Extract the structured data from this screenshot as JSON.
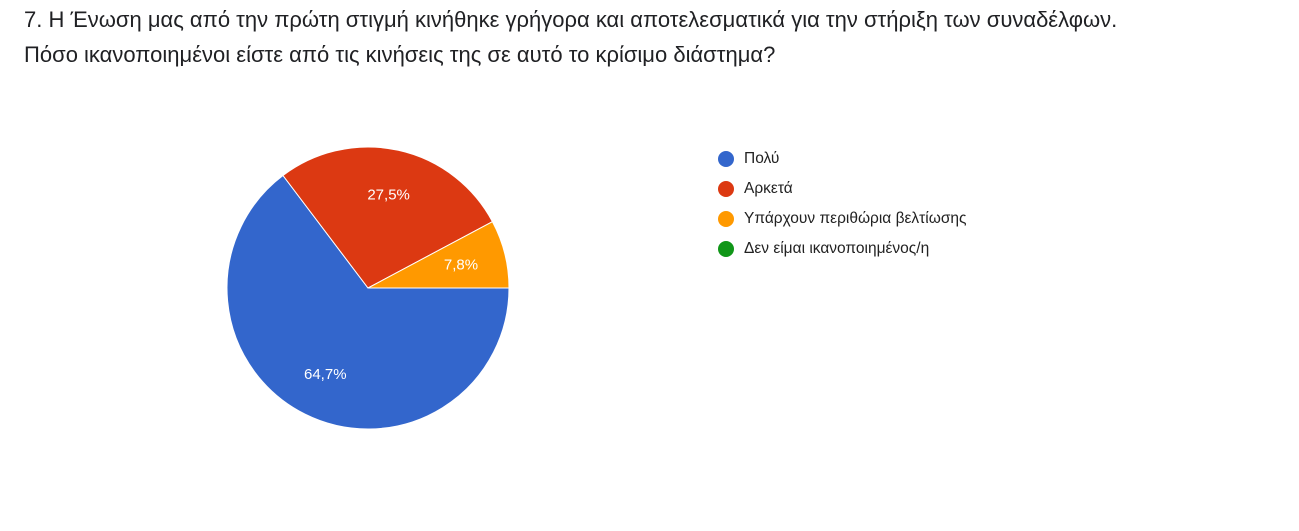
{
  "question": "7. Η Ένωση μας από την πρώτη στιγμή κινήθηκε γρήγορα και αποτελεσματικά για την στήριξη των συναδέλφων. Πόσο ικανοποιημένοι είστε από τις κινήσεις της σε αυτό το κρίσιμο διάστημα?",
  "chart_data": {
    "type": "pie",
    "title": "",
    "legend_position": "right",
    "slices": [
      {
        "label": "Πολύ",
        "value": 64.7,
        "display": "64,7%",
        "color": "#3366cc"
      },
      {
        "label": "Αρκετά",
        "value": 27.5,
        "display": "27,5%",
        "color": "#dc3912"
      },
      {
        "label": "Υπάρχουν περιθώρια βελτίωσης",
        "value": 7.8,
        "display": "7,8%",
        "color": "#ff9900"
      },
      {
        "label": "Δεν είμαι ικανοποιημένος/η",
        "value": 0,
        "display": "",
        "color": "#109618"
      }
    ]
  }
}
